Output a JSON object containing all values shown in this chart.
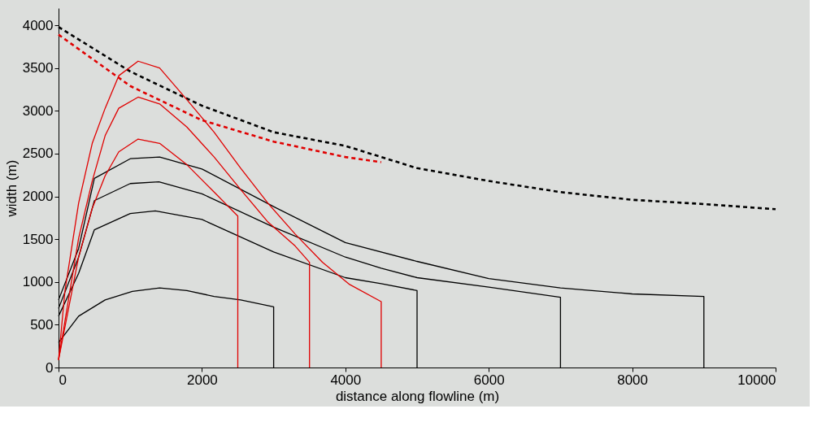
{
  "chart_data": {
    "type": "line",
    "xlabel": "distance along flowline (m)",
    "ylabel": "width (m)",
    "xlim": [
      0,
      10000
    ],
    "ylim": [
      0,
      4200
    ],
    "xticks": [
      0,
      2000,
      4000,
      6000,
      8000,
      10000
    ],
    "yticks": [
      0,
      500,
      1000,
      1500,
      2000,
      2500,
      3000,
      3500,
      4000
    ],
    "series": [
      {
        "color": "#000000",
        "line_style": "dashed",
        "x": [
          0,
          1000,
          2000,
          3000,
          4000,
          5000,
          6000,
          7000,
          8000,
          9000,
          10000
        ],
        "values": [
          3980,
          3460,
          3060,
          2750,
          2590,
          2330,
          2180,
          2050,
          1960,
          1910,
          1850
        ]
      },
      {
        "color": "#e00000",
        "line_style": "dashed",
        "x": [
          0,
          1000,
          2000,
          3000,
          4000,
          4500
        ],
        "values": [
          3890,
          3290,
          2890,
          2640,
          2460,
          2400
        ]
      },
      {
        "color": "#000000",
        "line_style": "solid",
        "x": [
          0,
          280,
          650,
          1030,
          1410,
          1790,
          2170,
          2540,
          3000,
          3000
        ],
        "values": [
          290,
          600,
          790,
          890,
          930,
          900,
          830,
          790,
          710,
          0
        ]
      },
      {
        "color": "#000000",
        "line_style": "solid",
        "x": [
          0,
          280,
          500,
          1000,
          1350,
          2000,
          3000,
          4000,
          4500,
          5000,
          5000
        ],
        "values": [
          600,
          1100,
          1610,
          1800,
          1830,
          1730,
          1350,
          1050,
          980,
          900,
          0
        ]
      },
      {
        "color": "#000000",
        "line_style": "solid",
        "x": [
          0,
          280,
          500,
          1000,
          1400,
          2000,
          3000,
          4000,
          4500,
          5000,
          6000,
          7000,
          7000
        ],
        "values": [
          690,
          1290,
          1950,
          2150,
          2170,
          2030,
          1640,
          1290,
          1160,
          1050,
          940,
          820,
          0
        ]
      },
      {
        "color": "#000000",
        "line_style": "solid",
        "x": [
          0,
          280,
          500,
          1000,
          1410,
          2000,
          3000,
          4000,
          5000,
          6000,
          7000,
          8000,
          9000,
          9000
        ],
        "values": [
          790,
          1390,
          2210,
          2440,
          2460,
          2320,
          1880,
          1460,
          1240,
          1040,
          930,
          860,
          830,
          0
        ]
      },
      {
        "color": "#e00000",
        "line_style": "solid",
        "x": [
          0,
          280,
          470,
          650,
          840,
          1110,
          1410,
          1790,
          2170,
          2500,
          2500
        ],
        "values": [
          90,
          1290,
          1860,
          2240,
          2520,
          2670,
          2620,
          2370,
          2050,
          1770,
          0
        ]
      },
      {
        "color": "#e00000",
        "line_style": "solid",
        "x": [
          0,
          280,
          470,
          650,
          840,
          1110,
          1410,
          1790,
          2170,
          2540,
          2920,
          3300,
          3500,
          3500
        ],
        "values": [
          90,
          1510,
          2180,
          2710,
          3030,
          3160,
          3080,
          2810,
          2460,
          2080,
          1700,
          1420,
          1230,
          0
        ]
      },
      {
        "color": "#e00000",
        "line_style": "solid",
        "x": [
          0,
          90,
          280,
          470,
          650,
          840,
          1110,
          1410,
          1790,
          2170,
          2540,
          2920,
          3300,
          3680,
          4060,
          4500,
          4500
        ],
        "values": [
          90,
          900,
          1920,
          2620,
          3030,
          3410,
          3580,
          3500,
          3130,
          2750,
          2330,
          1920,
          1560,
          1230,
          970,
          770,
          0
        ]
      }
    ]
  }
}
